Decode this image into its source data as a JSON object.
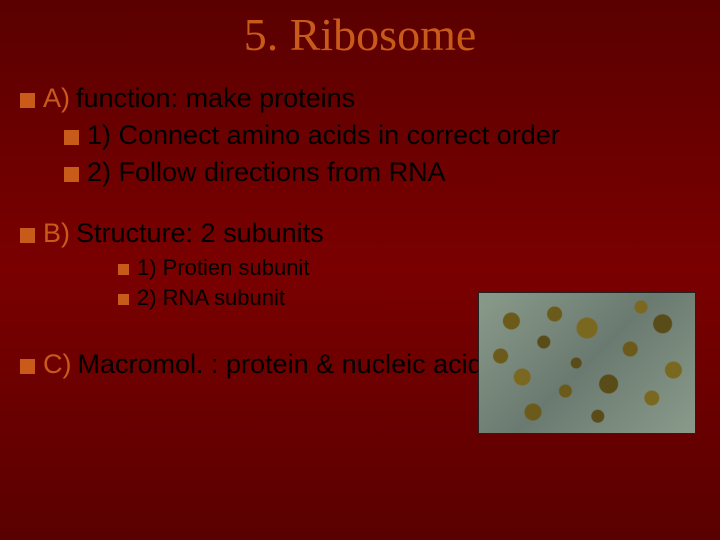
{
  "title": "5.  Ribosome",
  "rowA": {
    "leader": "A)",
    "text": "function: make proteins"
  },
  "sub1": "1) Connect amino acids in correct order",
  "sub2": "2) Follow directions from RNA",
  "rowB": {
    "leader": "B)",
    "text": "Structure: 2 subunits"
  },
  "subB1": "1)  Protien subunit",
  "subB2": "2)  RNA subunit",
  "rowC": {
    "leader": "C)",
    "text": "Macromol.  : protein & nucleic acid"
  },
  "colors": {
    "accent": "#c85a1a",
    "bg_dark": "#5a0000",
    "bg_mid": "#7a0000",
    "text": "#000000"
  }
}
